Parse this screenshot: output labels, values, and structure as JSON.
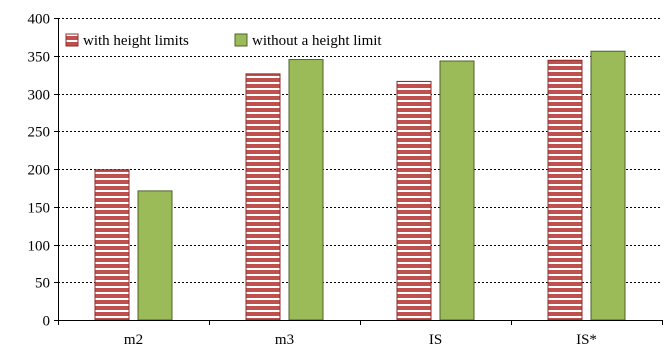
{
  "chart_data": {
    "type": "bar",
    "title": "",
    "xlabel": "",
    "ylabel": "",
    "categories": [
      "m2",
      "m3",
      "IS",
      "IS*"
    ],
    "series": [
      {
        "name": "with height limits",
        "values": [
          199,
          326,
          316,
          344
        ],
        "color": "#c0504d",
        "pattern": "horizontal-stripes"
      },
      {
        "name": "without a height limit",
        "values": [
          171,
          345,
          343,
          356
        ],
        "color": "#9bbb59",
        "pattern": "solid"
      }
    ],
    "ylim": [
      0,
      400
    ],
    "yticks": [
      0,
      50,
      100,
      150,
      200,
      250,
      300,
      350,
      400
    ],
    "grid": "horizontal dashed",
    "legend_position": "top-left"
  }
}
